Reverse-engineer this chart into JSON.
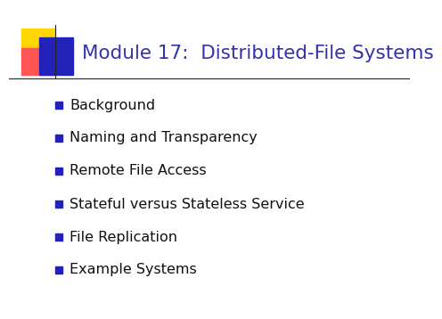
{
  "title": "Module 17:  Distributed-File Systems",
  "title_color": "#3333aa",
  "title_fontsize": 15.5,
  "bullet_items": [
    "Background",
    "Naming and Transparency",
    "Remote File Access",
    "Stateful versus Stateless Service",
    "File Replication",
    "Example Systems"
  ],
  "bullet_color": "#111111",
  "bullet_fontsize": 11.5,
  "bullet_marker_color": "#2222bb",
  "background_color": "#ffffff",
  "divider_color": "#333333",
  "logo_yellow": "#FFD700",
  "logo_red": "#FF5555",
  "logo_blue": "#2222bb"
}
